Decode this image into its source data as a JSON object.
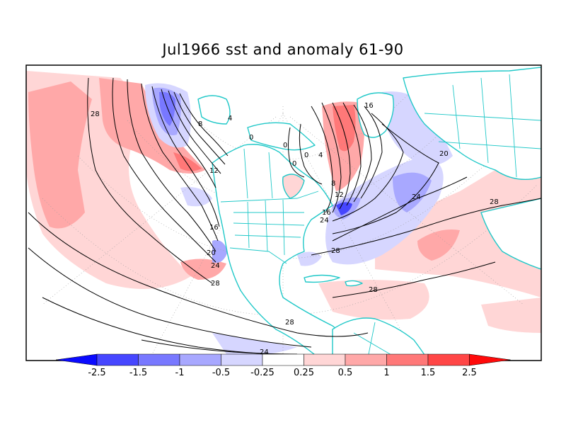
{
  "title": "Jul1966 sst and anomaly 61-90",
  "colorbar": {
    "labels": [
      "-2.5",
      "-1.5",
      "-1",
      "-0.5",
      "-0.25",
      "0.25",
      "0.5",
      "1",
      "1.5",
      "2.5"
    ],
    "colors": [
      "#0a0aff",
      "#4646ff",
      "#7878ff",
      "#a8a8ff",
      "#d6d6ff",
      "#ffffff",
      "#ffd6d6",
      "#ffa8a8",
      "#ff7878",
      "#ff4646",
      "#ff0a0a"
    ]
  },
  "contour_labels": [
    "28",
    "8",
    "4",
    "12",
    "16",
    "20",
    "24",
    "28",
    "28",
    "24",
    "0",
    "0",
    "0",
    "0",
    "4",
    "8",
    "12",
    "16",
    "16",
    "20",
    "24",
    "28",
    "28",
    "28",
    "24"
  ],
  "colors": {
    "land_outline": "#20c8c8",
    "contour": "#000000"
  }
}
